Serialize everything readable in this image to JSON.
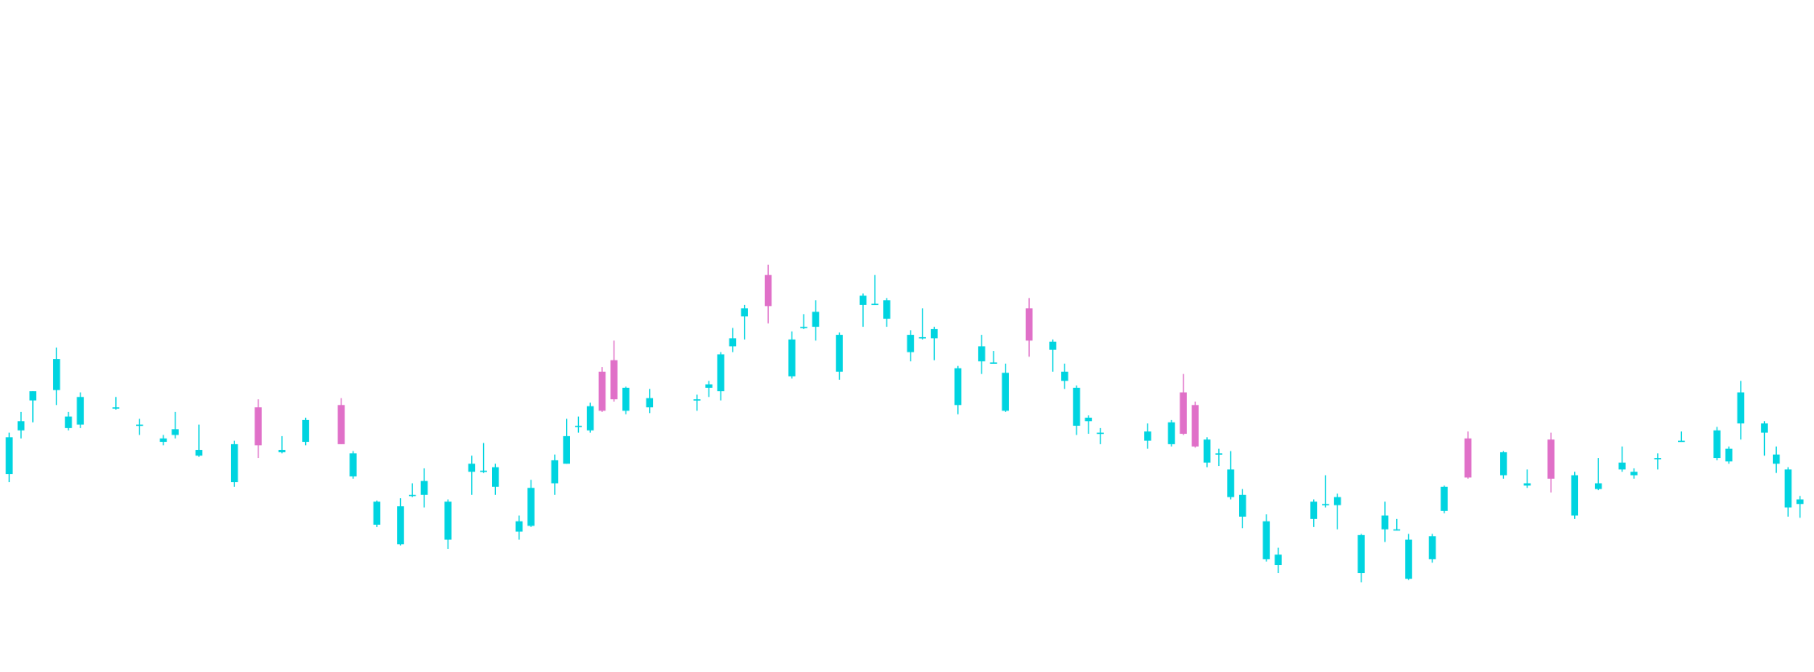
{
  "chart_data": {
    "type": "candlestick",
    "up_color": "#00d4e0",
    "down_color": "#e070c8",
    "ylim": [
      0,
      584
    ],
    "categories": [
      null,
      null,
      null,
      null,
      null,
      null,
      null,
      null,
      null,
      null,
      null,
      null,
      null,
      null,
      null,
      null,
      null,
      null,
      null,
      null,
      null,
      null,
      null,
      null,
      null,
      null,
      null,
      null,
      null,
      null,
      null,
      null,
      null,
      null,
      null,
      null,
      null,
      null,
      null,
      null,
      null,
      null,
      null,
      null,
      null,
      null,
      null,
      null,
      null,
      null,
      null,
      null,
      null,
      null,
      null,
      null,
      null,
      null,
      null,
      null,
      null,
      null,
      null,
      null,
      null,
      null,
      null,
      null,
      null,
      null,
      null,
      null,
      null,
      null,
      null,
      null,
      null,
      null,
      null,
      null,
      null,
      null,
      null,
      null,
      null,
      null,
      null,
      null,
      null,
      null,
      null,
      null,
      null,
      null,
      null,
      null,
      null,
      null,
      null,
      null,
      null,
      null,
      null,
      null,
      null,
      null,
      null,
      null,
      null,
      null,
      null,
      null,
      null,
      null,
      null,
      null,
      null,
      null,
      null,
      null,
      null,
      null,
      null,
      null,
      null,
      null,
      null,
      null,
      null,
      null,
      null,
      null,
      null,
      null,
      null,
      null,
      null,
      null,
      null,
      null,
      null,
      null,
      null,
      null,
      null,
      null,
      null,
      null,
      null,
      null,
      null,
      null
    ],
    "open": [
      172,
      210,
      236,
      null,
      245,
      212,
      215,
      null,
      null,
      229,
      null,
      214,
      null,
      200,
      206,
      null,
      188,
      null,
      null,
      165,
      null,
      230,
      null,
      191,
      null,
      200,
      null,
      null,
      232,
      170,
      null,
      128,
      null,
      111,
      153,
      154,
      null,
      115,
      null,
      174,
      174,
      161,
      null,
      122,
      127,
      null,
      164,
      181,
      214,
      210,
      261,
      271,
      227,
      null,
      230,
      null,
      null,
      null,
      236,
      247,
      244,
      283,
      309,
      null,
      345,
      null,
      257,
      299,
      300,
      null,
      261,
      null,
      319,
      320,
      307,
      null,
      278,
      290,
      290,
      null,
      232,
      null,
      270,
      269,
      227,
      null,
      316,
      null,
      280,
      253,
      214,
      218,
      208,
      null,
      null,
      null,
      201,
      null,
      198,
      243,
      232,
      182,
      190,
      152,
      135,
      null,
      98,
      93,
      null,
      null,
      133,
      145,
      145,
      null,
      86,
      null,
      124,
      124,
      81,
      null,
      98,
      140,
      null,
      203,
      null,
      null,
      171,
      null,
      162,
      null,
      202,
      null,
      136,
      null,
      159,
      null,
      176,
      171,
      null,
      186,
      null,
      201,
      null,
      null,
      186,
      183,
      216,
      null,
      208,
      181,
      143,
      146
    ],
    "high": [
      208,
      226,
      244,
      null,
      282,
      226,
      243,
      null,
      null,
      239,
      null,
      220,
      null,
      206,
      226,
      null,
      215,
      null,
      null,
      201,
      null,
      237,
      null,
      205,
      null,
      221,
      null,
      null,
      238,
      192,
      null,
      149,
      null,
      151,
      164,
      177,
      null,
      150,
      null,
      188,
      199,
      181,
      null,
      136,
      167,
      null,
      189,
      220,
      222,
      234,
      265,
      288,
      248,
      null,
      246,
      null,
      null,
      null,
      241,
      253,
      278,
      299,
      319,
      null,
      354,
      null,
      296,
      311,
      323,
      null,
      295,
      null,
      329,
      345,
      325,
      null,
      297,
      316,
      300,
      null,
      266,
      null,
      293,
      279,
      268,
      null,
      325,
      null,
      289,
      268,
      249,
      223,
      212,
      null,
      null,
      null,
      216,
      null,
      219,
      259,
      235,
      204,
      194,
      192,
      159,
      null,
      137,
      108,
      null,
      null,
      150,
      171,
      155,
      null,
      120,
      null,
      148,
      133,
      120,
      null,
      120,
      162,
      null,
      209,
      null,
      null,
      192,
      null,
      176,
      null,
      208,
      null,
      174,
      null,
      186,
      null,
      196,
      177,
      null,
      190,
      null,
      209,
      null,
      null,
      213,
      196,
      253,
      null,
      218,
      196,
      178,
      153
    ],
    "low": [
      165,
      203,
      217,
      null,
      232,
      210,
      212,
      null,
      null,
      228,
      null,
      206,
      null,
      197,
      203,
      null,
      187,
      null,
      null,
      161,
      null,
      186,
      null,
      190,
      null,
      197,
      null,
      null,
      198,
      168,
      null,
      126,
      null,
      110,
      152,
      143,
      null,
      107,
      null,
      154,
      173,
      154,
      null,
      115,
      126,
      null,
      154,
      181,
      208,
      208,
      226,
      235,
      224,
      null,
      225,
      null,
      null,
      null,
      227,
      239,
      236,
      278,
      289,
      null,
      303,
      null,
      255,
      298,
      288,
      null,
      254,
      null,
      300,
      319,
      300,
      null,
      270,
      289,
      271,
      null,
      224,
      null,
      259,
      268,
      226,
      null,
      274,
      null,
      261,
      246,
      206,
      207,
      198,
      null,
      null,
      null,
      194,
      null,
      196,
      206,
      195,
      178,
      179,
      150,
      125,
      null,
      96,
      86,
      null,
      null,
      126,
      143,
      124,
      null,
      78,
      null,
      113,
      123,
      80,
      null,
      95,
      138,
      null,
      168,
      null,
      null,
      168,
      null,
      160,
      null,
      156,
      null,
      133,
      null,
      158,
      null,
      174,
      168,
      null,
      176,
      null,
      200,
      null,
      null,
      184,
      181,
      202,
      null,
      188,
      173,
      135,
      134
    ],
    "close": [
      204,
      218,
      244,
      null,
      272,
      222,
      239,
      null,
      null,
      230,
      null,
      215,
      null,
      203,
      211,
      null,
      193,
      null,
      null,
      198,
      null,
      197,
      null,
      193,
      null,
      219,
      null,
      null,
      198,
      190,
      null,
      148,
      null,
      144,
      154,
      166,
      null,
      148,
      null,
      181,
      175,
      178,
      null,
      131,
      160,
      null,
      184,
      205,
      214,
      231,
      227,
      237,
      247,
      null,
      238,
      null,
      null,
      null,
      237,
      250,
      276,
      290,
      316,
      null,
      318,
      null,
      289,
      300,
      313,
      null,
      293,
      null,
      327,
      320,
      323,
      null,
      293,
      291,
      298,
      null,
      264,
      null,
      283,
      269,
      260,
      null,
      288,
      null,
      287,
      261,
      247,
      221,
      208,
      null,
      null,
      null,
      209,
      null,
      217,
      207,
      196,
      202,
      190,
      176,
      154,
      null,
      131,
      102,
      null,
      null,
      148,
      146,
      152,
      null,
      119,
      null,
      136,
      124,
      115,
      null,
      118,
      161,
      null,
      169,
      null,
      null,
      191,
      null,
      164,
      null,
      168,
      null,
      171,
      null,
      164,
      null,
      182,
      174,
      null,
      186,
      null,
      201,
      null,
      null,
      210,
      194,
      243,
      null,
      216,
      189,
      176,
      150
    ]
  }
}
